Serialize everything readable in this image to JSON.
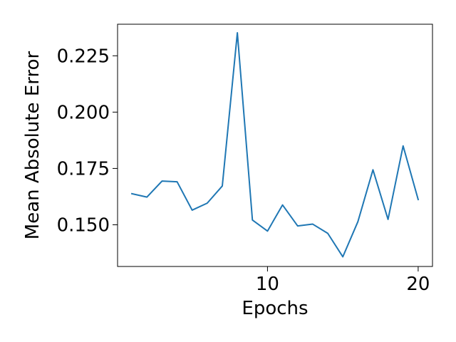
{
  "chart_data": {
    "type": "line",
    "title": "",
    "xlabel": "Epochs",
    "ylabel": "Mean Absolute Error",
    "xlim": [
      0.05,
      20.95
    ],
    "ylim": [
      0.1315,
      0.239
    ],
    "xticks": [
      10,
      20
    ],
    "yticks": [
      0.15,
      0.175,
      0.2,
      0.225
    ],
    "ytick_labels": [
      "0.150",
      "0.175",
      "0.200",
      "0.225"
    ],
    "grid": false,
    "series": [
      {
        "color": "#1f77b4",
        "x": [
          1,
          2,
          3,
          4,
          5,
          6,
          7,
          8,
          9,
          10,
          11,
          12,
          13,
          14,
          15,
          16,
          17,
          18,
          19,
          20
        ],
        "y": [
          0.1638,
          0.1623,
          0.1694,
          0.1691,
          0.1565,
          0.1596,
          0.1672,
          0.2352,
          0.1521,
          0.1472,
          0.1588,
          0.1495,
          0.1503,
          0.1462,
          0.1358,
          0.1514,
          0.1744,
          0.1524,
          0.185,
          0.1612
        ]
      }
    ]
  }
}
